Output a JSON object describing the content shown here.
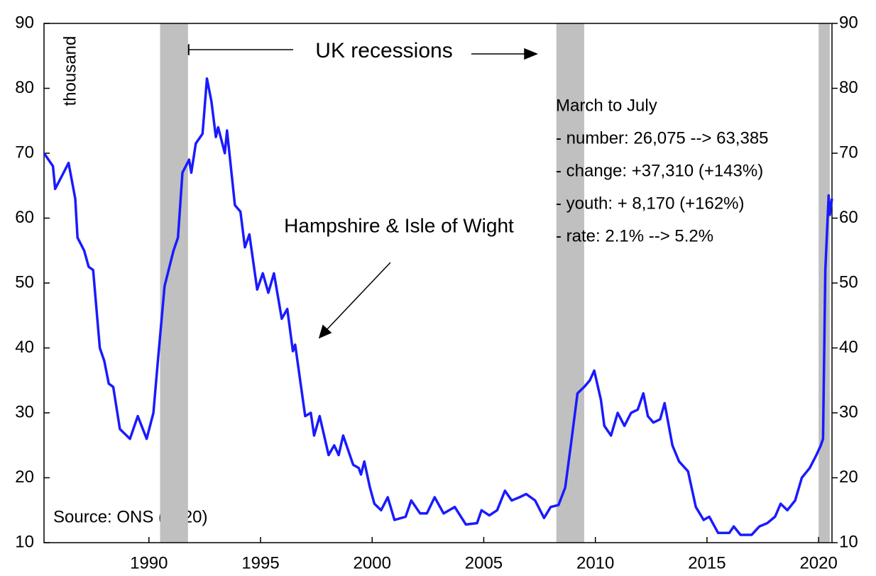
{
  "chart_data": {
    "type": "line",
    "y_label": "thousand",
    "recession_label": "UK recessions",
    "series_label": "Hampshire & Isle of Wight",
    "note_lines": [
      "March to July",
      "- number: 26,075 --> 63,385",
      "- change: +37,310 (+143%)",
      "- youth: + 8,170 (+162%)",
      "- rate: 2.1% --> 5.2%"
    ],
    "source": "Source: ONS (2020)",
    "recessions": [
      [
        1990.5,
        1991.75
      ],
      [
        2008.25,
        2009.5
      ],
      [
        2020.0,
        2020.5
      ]
    ],
    "recession_color": "#c0c0c0",
    "xlim": [
      1985.3,
      2020.6
    ],
    "xticks": [
      1990,
      1995,
      2000,
      2005,
      2010,
      2015,
      2020
    ],
    "ylim": [
      10,
      90
    ],
    "yticks": [
      10,
      20,
      30,
      40,
      50,
      60,
      70,
      80,
      90
    ],
    "y2lim": [
      10,
      90
    ],
    "y2ticks": [
      10,
      20,
      30,
      40,
      50,
      60,
      70,
      80,
      90
    ],
    "series": [
      {
        "name": "Hampshire & Isle of Wight",
        "color": "#1a1aff",
        "x": [
          1985.3,
          1985.7,
          1985.8,
          1986.1,
          1986.4,
          1986.7,
          1986.8,
          1987.1,
          1987.3,
          1987.5,
          1987.8,
          1988.0,
          1988.2,
          1988.4,
          1988.7,
          1989.15,
          1989.5,
          1989.9,
          1990.2,
          1990.4,
          1990.7,
          1991.1,
          1991.3,
          1991.5,
          1991.8,
          1991.9,
          1992.1,
          1992.4,
          1992.6,
          1992.8,
          1993.0,
          1993.1,
          1993.4,
          1993.5,
          1993.85,
          1994.1,
          1994.3,
          1994.5,
          1994.85,
          1995.1,
          1995.35,
          1995.6,
          1995.95,
          1996.2,
          1996.45,
          1996.55,
          1997.0,
          1997.25,
          1997.4,
          1997.65,
          1998.05,
          1998.3,
          1998.5,
          1998.7,
          1999.15,
          1999.4,
          1999.5,
          1999.65,
          1999.9,
          2000.1,
          2000.4,
          2000.7,
          2001.0,
          2001.5,
          2001.75,
          2002.15,
          2002.45,
          2002.8,
          2003.2,
          2003.7,
          2004.2,
          2004.7,
          2004.9,
          2005.25,
          2005.6,
          2005.95,
          2006.25,
          2006.6,
          2006.9,
          2007.3,
          2007.7,
          2008.0,
          2008.35,
          2008.65,
          2008.9,
          2009.2,
          2009.5,
          2009.75,
          2009.95,
          2010.25,
          2010.4,
          2010.7,
          2011.0,
          2011.3,
          2011.6,
          2011.9,
          2012.15,
          2012.35,
          2012.6,
          2012.9,
          2013.1,
          2013.45,
          2013.75,
          2014.15,
          2014.5,
          2014.85,
          2015.1,
          2015.5,
          2016.0,
          2016.2,
          2016.5,
          2017.0,
          2017.35,
          2017.7,
          2018.05,
          2018.3,
          2018.6,
          2018.95,
          2019.25,
          2019.6,
          2019.9,
          2020.1,
          2020.2,
          2020.3,
          2020.45,
          2020.5,
          2020.6
        ],
        "values": [
          70,
          68,
          64.5,
          66.5,
          68.5,
          63,
          57,
          55,
          52.5,
          52,
          40,
          38,
          34.5,
          34,
          27.5,
          26,
          29.5,
          26,
          30,
          38,
          49.5,
          55,
          57,
          67,
          69,
          67,
          71.5,
          73,
          81.5,
          78,
          72.5,
          74,
          70,
          73.5,
          62,
          61,
          55.5,
          57.5,
          49,
          51.5,
          48.5,
          51.5,
          44.5,
          46,
          39.5,
          40.5,
          29.5,
          30,
          26.5,
          29.5,
          23.5,
          25,
          23.5,
          26.5,
          22,
          21.5,
          20.5,
          22.5,
          18.5,
          16,
          15,
          17,
          13.5,
          14,
          16.5,
          14.5,
          14.5,
          17,
          14.5,
          15.5,
          12.8,
          13,
          15,
          14.2,
          15,
          18,
          16.5,
          17,
          17.5,
          16.5,
          13.8,
          15.5,
          15.8,
          18.5,
          25,
          33,
          34,
          35,
          36.5,
          32,
          28,
          26.5,
          30,
          28,
          30,
          30.5,
          33,
          29.5,
          28.5,
          29,
          31.5,
          25,
          22.5,
          21,
          15.5,
          13.5,
          14,
          11.5,
          11.5,
          12.5,
          11.2,
          11.2,
          12.5,
          13,
          14,
          16,
          15,
          16.5,
          20,
          21.5,
          23.5,
          25,
          26,
          52,
          63.5,
          60.5,
          63
        ]
      }
    ]
  }
}
